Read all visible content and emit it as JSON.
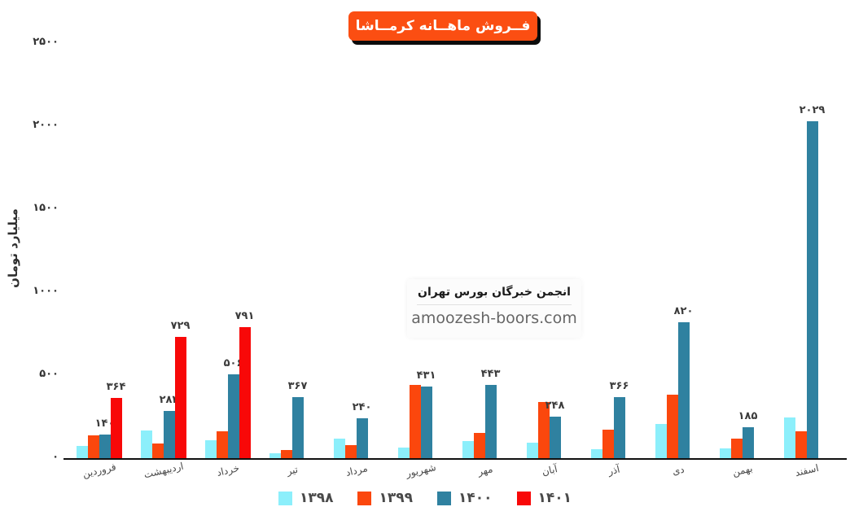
{
  "title": "فــروش ماهــانه کرمــاشا",
  "y_axis_title": "میلیارد تومان",
  "watermark": {
    "org": "انجمن خبرگان بورس تهران",
    "site": "amoozesh-boors.com"
  },
  "colors": {
    "year_1398": "#8ceffb",
    "year_1399": "#fb470d",
    "year_1400": "#2f81a0",
    "year_1401": "#f80808",
    "title_bg": "#fb4e12",
    "title_text": "#ffffff",
    "axis_text": "#333333"
  },
  "legend": [
    {
      "label": "۱۳۹۸",
      "color": "#8ceffb"
    },
    {
      "label": "۱۳۹۹",
      "color": "#fb470d"
    },
    {
      "label": "۱۴۰۰",
      "color": "#2f81a0"
    },
    {
      "label": "۱۴۰۱",
      "color": "#f80808"
    }
  ],
  "chart_data": {
    "type": "bar",
    "title": "فــروش ماهــانه کرمــاشا",
    "ylabel": "میلیارد تومان",
    "ylim": [
      0,
      2500
    ],
    "grid": false,
    "legend_position": "bottom",
    "y_ticks": [
      {
        "value": 0,
        "label": "۰"
      },
      {
        "value": 500,
        "label": "۵۰۰"
      },
      {
        "value": 1000,
        "label": "۱۰۰۰"
      },
      {
        "value": 1500,
        "label": "۱۵۰۰"
      },
      {
        "value": 2000,
        "label": "۲۰۰۰"
      },
      {
        "value": 2500,
        "label": "۲۵۰۰"
      }
    ],
    "categories": [
      "فروردین",
      "اردیبهشت",
      "خرداد",
      "تیر",
      "مرداد",
      "شهریور",
      "مهر",
      "آبان",
      "آذر",
      "دی",
      "بهمن",
      "اسفند"
    ],
    "series": [
      {
        "name": "۱۳۹۸",
        "year": 1398,
        "color": "#8ceffb",
        "values": [
          75,
          165,
          110,
          30,
          120,
          65,
          105,
          95,
          55,
          205,
          60,
          245
        ],
        "labels": null
      },
      {
        "name": "۱۳۹۹",
        "year": 1399,
        "color": "#fb470d",
        "values": [
          138,
          90,
          160,
          50,
          80,
          440,
          150,
          340,
          170,
          380,
          120,
          160
        ],
        "labels": null
      },
      {
        "name": "۱۴۰۰",
        "year": 1400,
        "color": "#2f81a0",
        "values": [
          140,
          283,
          506,
          367,
          240,
          431,
          443,
          248,
          366,
          820,
          185,
          2029
        ],
        "labels": [
          "۱۴۰",
          "۲۸۳",
          "۵۰۶",
          "۳۶۷",
          "۲۴۰",
          "۴۳۱",
          "۴۴۳",
          "۲۴۸",
          "۳۶۶",
          "۸۲۰",
          "۱۸۵",
          "۲۰۲۹"
        ]
      },
      {
        "name": "۱۴۰۱",
        "year": 1401,
        "color": "#f80808",
        "values": [
          364,
          729,
          791,
          null,
          null,
          null,
          null,
          null,
          null,
          null,
          null,
          null
        ],
        "labels": [
          "۳۶۴",
          "۷۲۹",
          "۷۹۱",
          null,
          null,
          null,
          null,
          null,
          null,
          null,
          null,
          null
        ]
      }
    ]
  }
}
